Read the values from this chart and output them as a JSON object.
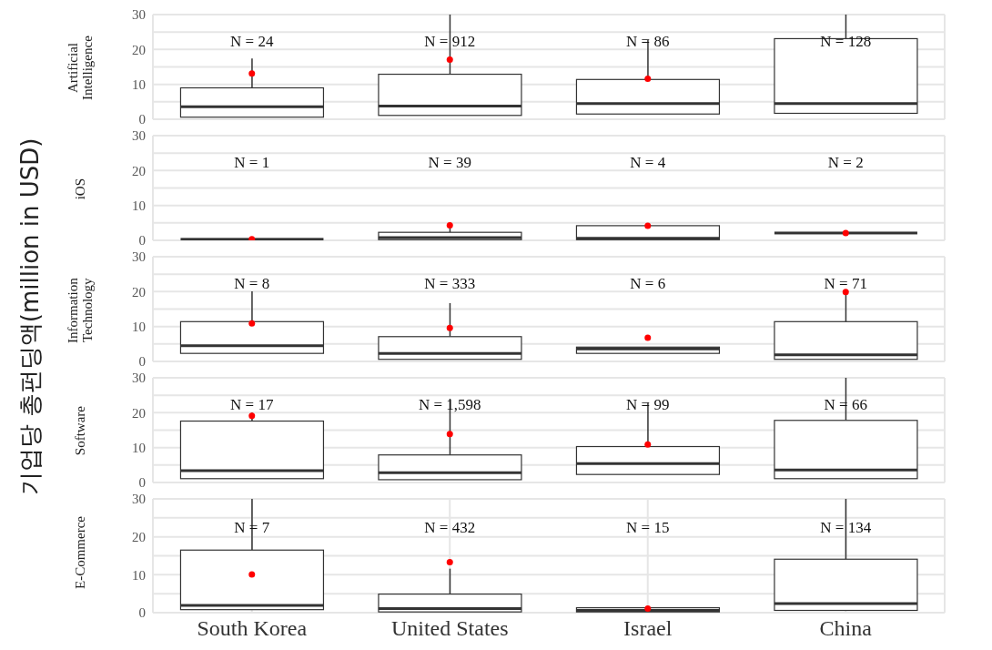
{
  "chart_data": [
    {
      "type": "box",
      "title": "Artificial Intelligence",
      "ylabel": "기업당 총펀딩액(million in USD)",
      "categories": [
        "South Korea",
        "United States",
        "Israel",
        "China"
      ],
      "ylim": [
        0,
        30
      ],
      "yticks": [
        0,
        {
          "value": 5,
          "label": null
        },
        10,
        {
          "value": 15,
          "label": null
        },
        20,
        {
          "value": 25,
          "label": null
        },
        30
      ],
      "grid": true,
      "tick_labels": "y",
      "boxes": [
        {
          "low": 0.6,
          "q1": 0.6,
          "median": 3.6,
          "q3": 9.0,
          "high": 17.4
        },
        {
          "low": 1.1,
          "q1": 1.1,
          "median": 3.8,
          "q3": 12.9,
          "high": 30
        },
        {
          "low": 1.5,
          "q1": 1.5,
          "median": 4.5,
          "q3": 11.4,
          "high": 22.7
        },
        {
          "low": 1.7,
          "q1": 1.7,
          "median": 4.5,
          "q3": 23.1,
          "high": 30
        }
      ],
      "series": [
        {
          "type": "scatter",
          "color": "#ff0000",
          "x": [
            "South Korea",
            "United States",
            "Israel",
            "China"
          ],
          "values": [
            13.1,
            17.1,
            11.6,
            null
          ]
        }
      ],
      "annotations": [
        "N = 24",
        "N = 912",
        "N = 86",
        "N = 128"
      ]
    },
    {
      "type": "box",
      "title": "iOS",
      "categories": [
        "South Korea",
        "United States",
        "Israel",
        "China"
      ],
      "colors": [
        "#333333",
        "#ffffff",
        "#ffffff",
        "#333333"
      ],
      "ylim": [
        0,
        30
      ],
      "yticks": [
        0,
        {
          "value": 5,
          "label": null
        },
        10,
        {
          "value": 15,
          "label": null
        },
        20,
        {
          "value": 25,
          "label": null
        },
        30
      ],
      "grid": true,
      "tick_labels": "y",
      "boxes": [
        {
          "low": 0.3,
          "q1": 0.3,
          "median": 0.3,
          "q3": 0.3,
          "high": 0.3
        },
        {
          "low": 0.2,
          "q1": 0.2,
          "median": 0.8,
          "q3": 2.3,
          "high": 4.5
        },
        {
          "low": 0.2,
          "q1": 0.2,
          "median": 0.6,
          "q3": 4.2,
          "high": 4.2
        },
        {
          "low": 2.1,
          "q1": 2.1,
          "median": 2.1,
          "q3": 2.1,
          "high": 2.1
        }
      ],
      "series": [
        {
          "type": "scatter",
          "color": "#ff0000",
          "x": [
            "South Korea",
            "United States",
            "Israel",
            "China"
          ],
          "values": [
            0.3,
            4.3,
            4.2,
            2.1
          ]
        }
      ],
      "annotations": [
        "N = 1",
        "N = 39",
        "N = 4",
        "N = 2"
      ]
    },
    {
      "type": "box",
      "title": "Information Technology",
      "categories": [
        "South Korea",
        "United States",
        "Israel",
        "China"
      ],
      "ylim": [
        0,
        30
      ],
      "yticks": [
        0,
        {
          "value": 5,
          "label": null
        },
        10,
        {
          "value": 15,
          "label": null
        },
        20,
        {
          "value": 25,
          "label": null
        },
        30
      ],
      "grid": true,
      "tick_labels": "y",
      "boxes": [
        {
          "low": 2.3,
          "q1": 2.3,
          "median": 4.5,
          "q3": 11.4,
          "high": 20.1
        },
        {
          "low": 0.6,
          "q1": 0.6,
          "median": 2.3,
          "q3": 7.1,
          "high": 16.7
        },
        {
          "low": 2.3,
          "q1": 2.3,
          "median": 3.6,
          "q3": 4.1,
          "high": 4.1
        },
        {
          "low": 0.6,
          "q1": 0.6,
          "median": 1.9,
          "q3": 11.4,
          "high": 19.9
        }
      ],
      "series": [
        {
          "type": "scatter",
          "color": "#ff0000",
          "x": [
            "South Korea",
            "United States",
            "Israel",
            "China"
          ],
          "values": [
            10.9,
            9.6,
            6.8,
            19.9
          ]
        }
      ],
      "annotations": [
        "N = 8",
        "N = 333",
        "N = 6",
        "N = 71"
      ]
    },
    {
      "type": "box",
      "title": "Software",
      "categories": [
        "South Korea",
        "United States",
        "Israel",
        "China"
      ],
      "ylim": [
        0,
        30
      ],
      "yticks": [
        0,
        {
          "value": 5,
          "label": null
        },
        10,
        {
          "value": 15,
          "label": null
        },
        20,
        {
          "value": 25,
          "label": null
        },
        30
      ],
      "grid": true,
      "tick_labels": "y",
      "boxes": [
        {
          "low": 1.1,
          "q1": 1.1,
          "median": 3.4,
          "q3": 17.6,
          "high": 20
        },
        {
          "low": 0.8,
          "q1": 0.8,
          "median": 2.8,
          "q3": 7.9,
          "high": 24
        },
        {
          "low": 2.3,
          "q1": 2.3,
          "median": 5.4,
          "q3": 10.3,
          "high": 22.9
        },
        {
          "low": 1.1,
          "q1": 1.1,
          "median": 3.6,
          "q3": 17.8,
          "high": 30
        }
      ],
      "series": [
        {
          "type": "scatter",
          "color": "#ff0000",
          "x": [
            "South Korea",
            "United States",
            "Israel",
            "China"
          ],
          "values": [
            19.1,
            13.9,
            10.9,
            null
          ]
        }
      ],
      "annotations": [
        "N = 17",
        "N = 1,598",
        "N = 99",
        "N = 66"
      ]
    },
    {
      "type": "box",
      "title": "E-Commerce",
      "categories": [
        "South Korea",
        "United States",
        "Israel",
        "China"
      ],
      "ylim": [
        0,
        30
      ],
      "yticks": [
        0,
        {
          "value": 5,
          "label": null
        },
        10,
        {
          "value": 15,
          "label": null
        },
        20,
        {
          "value": 25,
          "label": null
        },
        30
      ],
      "grid": true,
      "boxes": [
        {
          "low": 0.8,
          "q1": 0.8,
          "median": 1.9,
          "q3": 16.5,
          "high": 30
        },
        {
          "low": 0.2,
          "q1": 0.2,
          "median": 1.1,
          "q3": 4.9,
          "high": 11.6
        },
        {
          "low": 0.2,
          "q1": 0.2,
          "median": 0.6,
          "q3": 1.3,
          "high": 1.3
        },
        {
          "low": 0.6,
          "q1": 0.6,
          "median": 2.4,
          "q3": 14.1,
          "high": 30
        }
      ],
      "series": [
        {
          "type": "scatter",
          "color": "#ff0000",
          "x": [
            "South Korea",
            "United States",
            "Israel",
            "China"
          ],
          "values": [
            10.1,
            13.3,
            1.1,
            null
          ]
        }
      ],
      "annotations": [
        "N = 7",
        "N = 432",
        "N = 15",
        "N = 134"
      ]
    }
  ]
}
